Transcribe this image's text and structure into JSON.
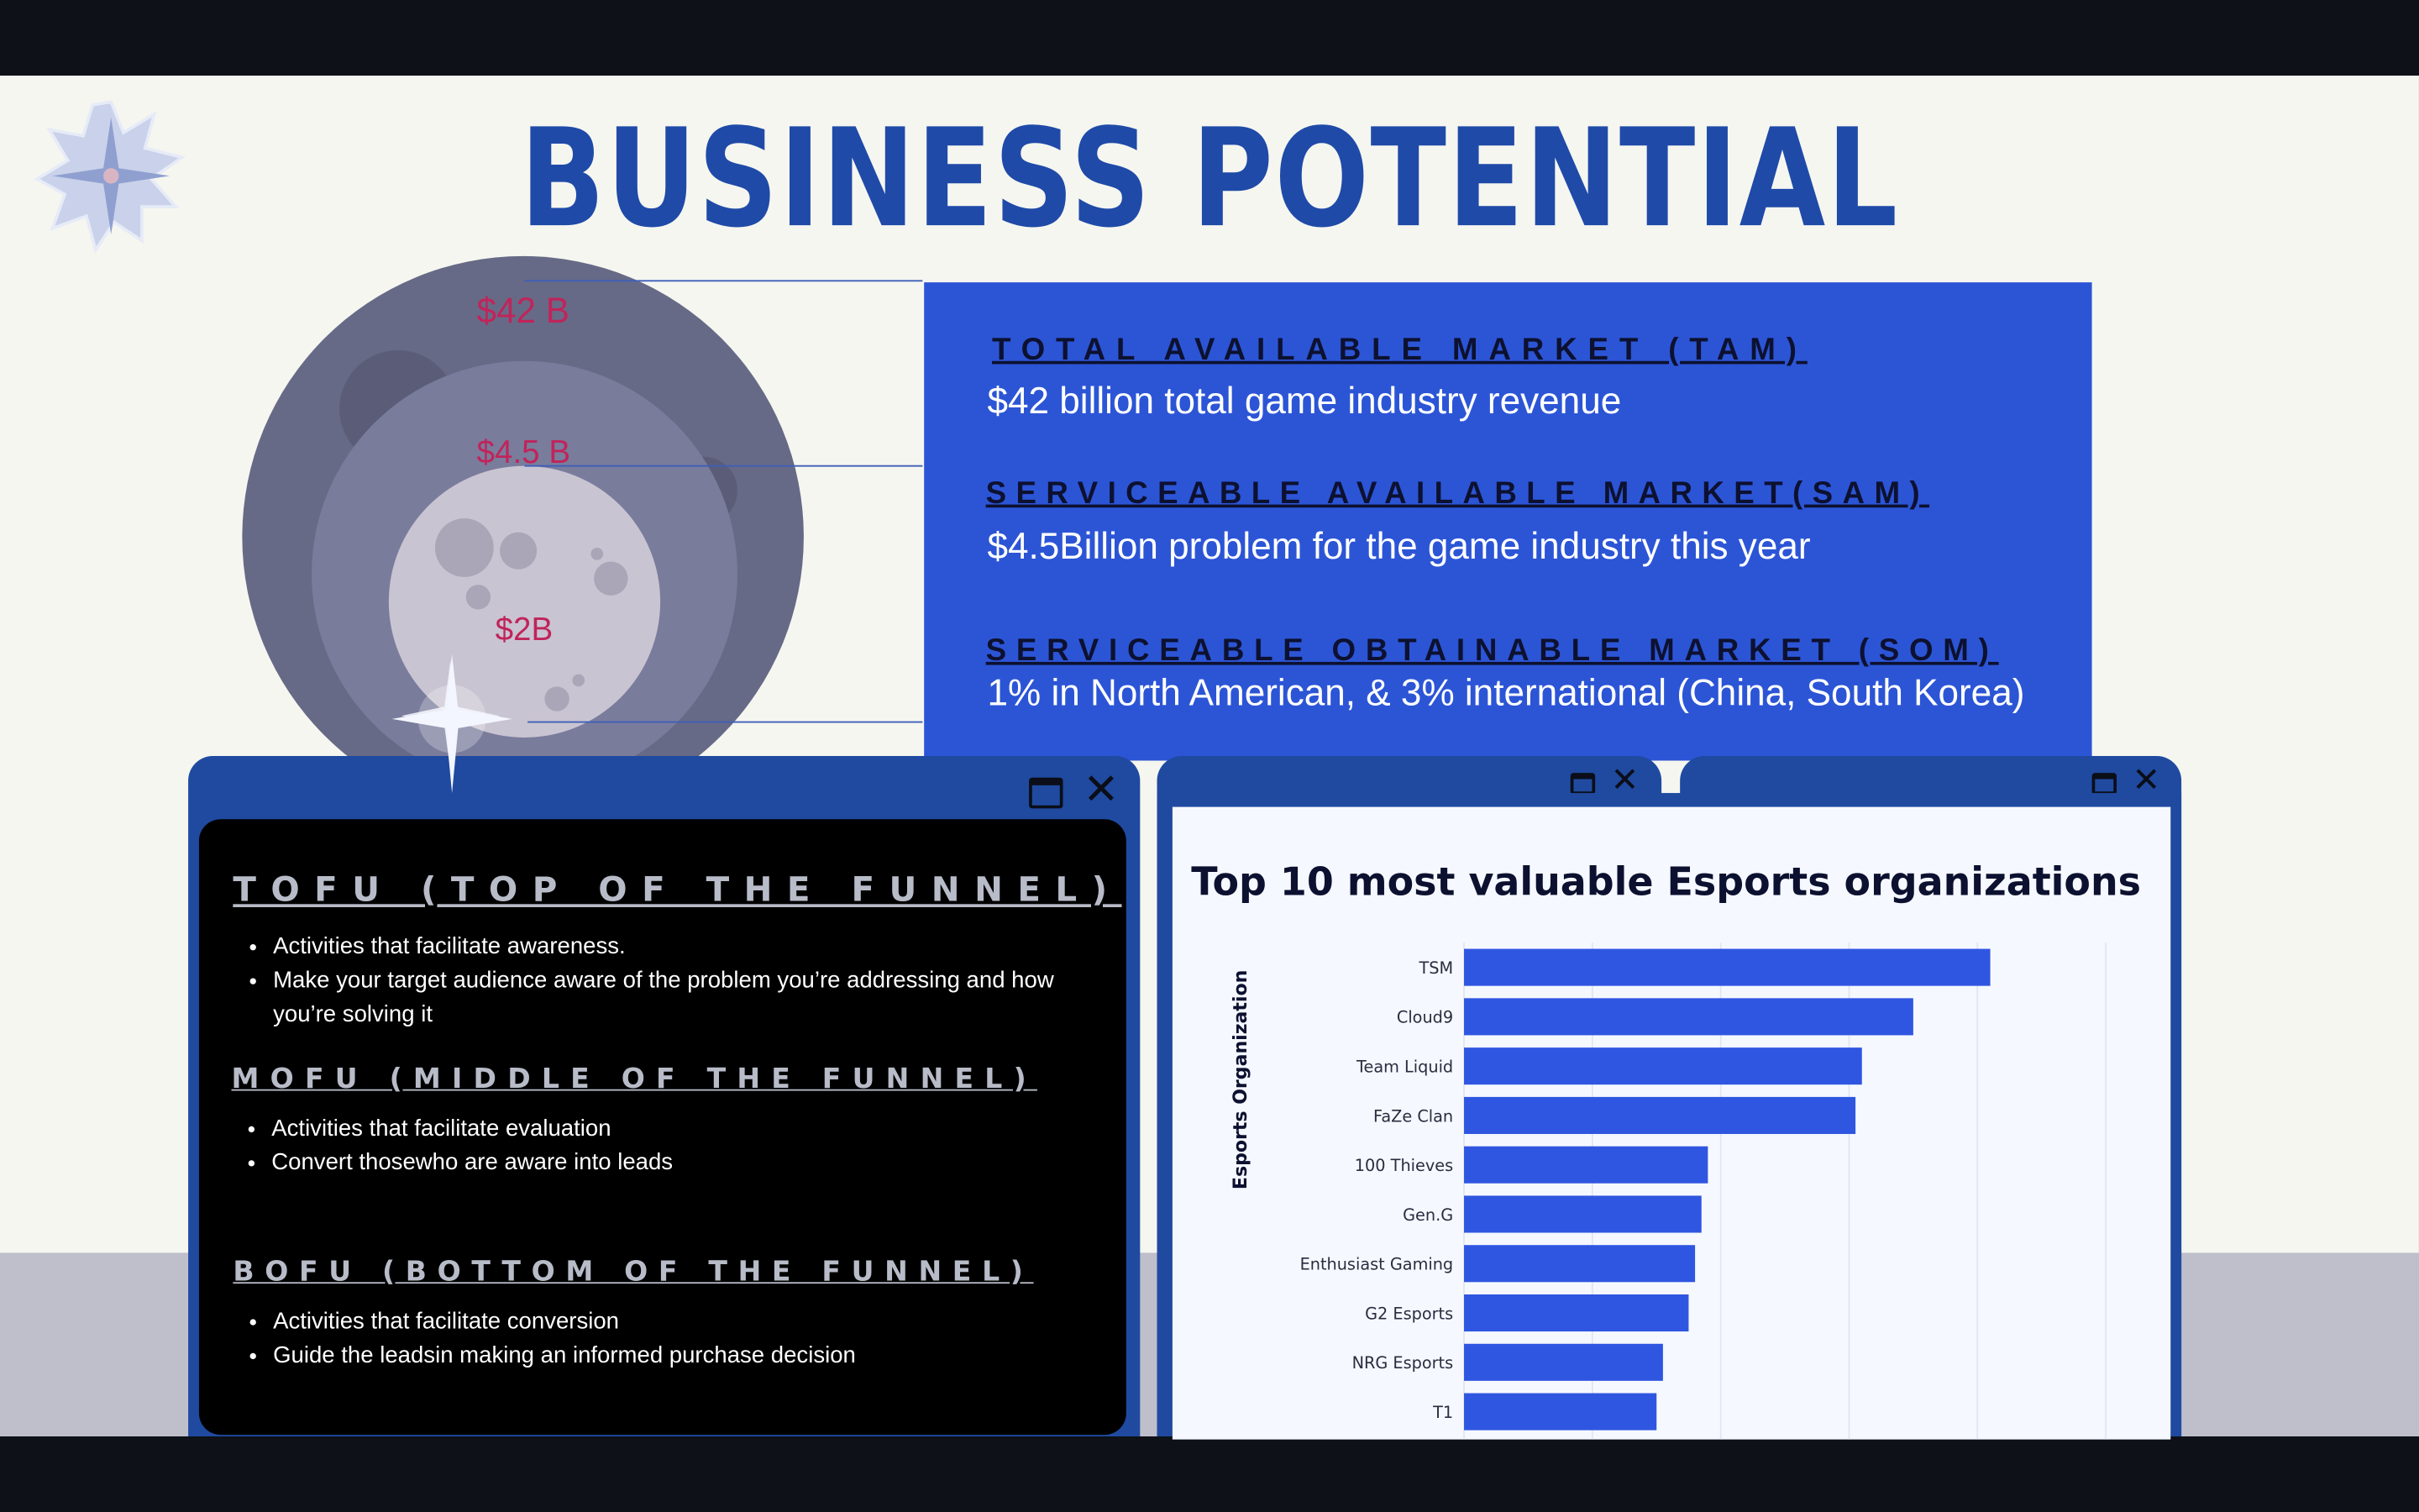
{
  "slide": {
    "title": "BUSINESS POTENTIAL",
    "colors": {
      "title": "#1f4aa8",
      "panel": "#2c55d6",
      "circle_label": "#c0245a"
    }
  },
  "market_circles": {
    "outer_label": "$42 B",
    "middle_label": "$4.5 B",
    "inner_label": "$2B"
  },
  "market_panel": {
    "tam": {
      "heading": "TOTAL AVAILABLE MARKET (TAM)",
      "text": "$42 billion total game industry revenue"
    },
    "sam": {
      "heading": "SERVICEABLE AVAILABLE  MARKET(SAM)",
      "text": "$4.5Billion problem for the game industry this year"
    },
    "som": {
      "heading": "SERVICEABLE OBTAINABLE MARKET (SOM)",
      "text": "1%  in North American, & 3% international (China, South Korea)"
    }
  },
  "funnel_window": {
    "icons": [
      "maximize-icon",
      "close-icon"
    ],
    "tofu": {
      "heading": "TOFU (TOP OF THE FUNNEL)",
      "items": [
        "Activities that facilitate awareness.",
        "Make your target audience aware of the problem you’re addressing and how you’re solving it"
      ]
    },
    "mofu": {
      "heading": "MOFU (MIDDLE OF THE FUNNEL)",
      "items": [
        "Activities that facilitate evaluation",
        "Convert thosewho are aware into leads"
      ]
    },
    "bofu": {
      "heading": "BOFU (BOTTOM OF THE FUNNEL)",
      "items": [
        "Activities that facilitate conversion",
        "Guide the leadsin making an informed purchase decision"
      ]
    }
  },
  "chart_window": {
    "icons": [
      "maximize-icon",
      "close-icon",
      "maximize-icon",
      "close-icon"
    ]
  },
  "chart_data": {
    "type": "bar",
    "orientation": "horizontal",
    "title": "Top 10 most valuable Esports organizations",
    "xlabel": "",
    "ylabel": "Esports Organization",
    "categories": [
      "TSM",
      "Cloud9",
      "Team Liquid",
      "FaZe Clan",
      "100 Thieves",
      "Gen.G",
      "Enthusiast Gaming",
      "G2 Esports",
      "NRG Esports",
      "T1"
    ],
    "values": [
      410,
      350,
      310,
      305,
      190,
      185,
      180,
      175,
      155,
      150
    ],
    "xlim": [
      0,
      500
    ],
    "grid": true,
    "bar_color": "#2f56e0"
  }
}
